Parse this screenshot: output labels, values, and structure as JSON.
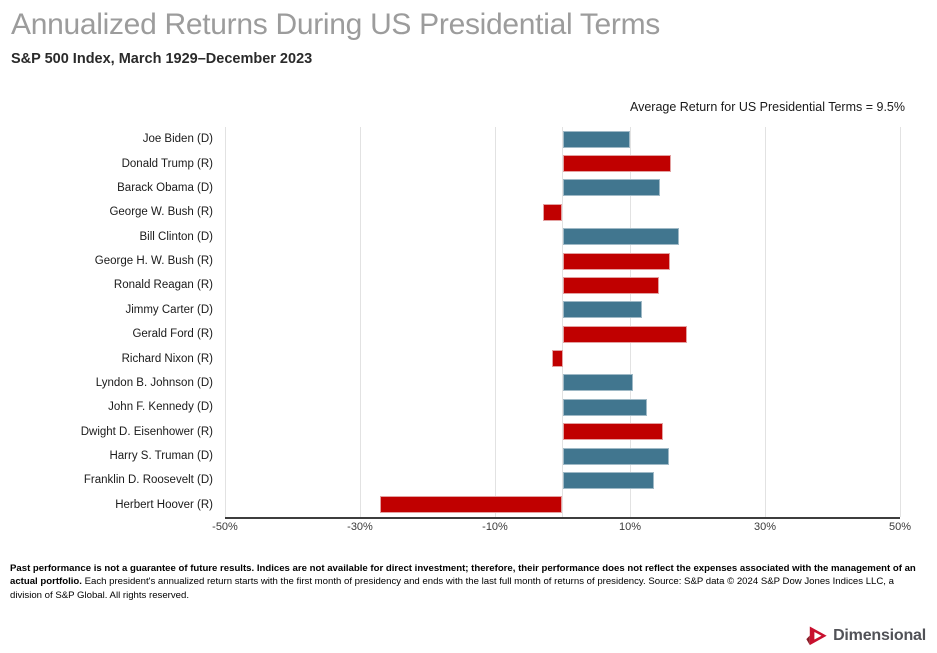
{
  "header": {
    "title": "Annualized Returns During US Presidential Terms",
    "subtitle": "S&P 500 Index, March 1929–December 2023"
  },
  "chart_data": {
    "type": "bar",
    "orientation": "horizontal",
    "title": "Annualized Returns During US Presidential Terms",
    "subtitle": "S&P 500 Index, March 1929–December 2023",
    "annotation": "Average Return for US Presidential Terms = 9.5%",
    "average_return_pct": 9.5,
    "xlim": [
      -50,
      50
    ],
    "gridlines": [
      -50,
      -30,
      -10,
      0,
      10,
      30,
      50
    ],
    "x_ticks": [
      {
        "value": -50,
        "label": "-50%"
      },
      {
        "value": -30,
        "label": "-30%"
      },
      {
        "value": -10,
        "label": "-10%"
      },
      {
        "value": 10,
        "label": "10%"
      },
      {
        "value": 30,
        "label": "30%"
      },
      {
        "value": 50,
        "label": "50%"
      }
    ],
    "legend": "none",
    "grid": "vertical-only",
    "bars": [
      {
        "label": "Joe Biden (D)",
        "party": "D",
        "value": 10.0
      },
      {
        "label": "Donald Trump (R)",
        "party": "R",
        "value": 16.1
      },
      {
        "label": "Barack Obama (D)",
        "party": "D",
        "value": 14.4
      },
      {
        "label": "George W. Bush (R)",
        "party": "R",
        "value": -2.9
      },
      {
        "label": "Bill Clinton (D)",
        "party": "D",
        "value": 17.3
      },
      {
        "label": "George H. W. Bush (R)",
        "party": "R",
        "value": 15.9
      },
      {
        "label": "Ronald Reagan (R)",
        "party": "R",
        "value": 14.3
      },
      {
        "label": "Jimmy Carter (D)",
        "party": "D",
        "value": 11.8
      },
      {
        "label": "Gerald Ford (R)",
        "party": "R",
        "value": 18.5
      },
      {
        "label": "Richard Nixon (R)",
        "party": "R",
        "value": -1.5
      },
      {
        "label": "Lyndon B. Johnson (D)",
        "party": "D",
        "value": 10.4
      },
      {
        "label": "John F. Kennedy (D)",
        "party": "D",
        "value": 12.5
      },
      {
        "label": "Dwight D. Eisenhower (R)",
        "party": "R",
        "value": 14.9
      },
      {
        "label": "Harry S. Truman (D)",
        "party": "D",
        "value": 15.8
      },
      {
        "label": "Franklin D. Roosevelt (D)",
        "party": "D",
        "value": 13.5
      },
      {
        "label": "Herbert Hoover (R)",
        "party": "R",
        "value": -27.1
      }
    ],
    "colors": {
      "democrat": "#41768f",
      "republican": "#c00000",
      "gridline": "#e2e2e2",
      "axis_line": "#3d3d3d"
    }
  },
  "footer": {
    "bold": "Past performance is not a guarantee of future results. Indices are not available for direct investment; therefore, their performance does not reflect the expenses associated with the management of an actual portfolio.",
    "regular": " Each president's annualized return starts with the first month of presidency and ends with the last full month of returns of presidency. Source: S&P data © 2024 S&P Dow Jones Indices LLC, a division of S&P Global. All rights reserved."
  },
  "logo": {
    "text": "Dimensional",
    "mark_color": "#c8102e"
  }
}
